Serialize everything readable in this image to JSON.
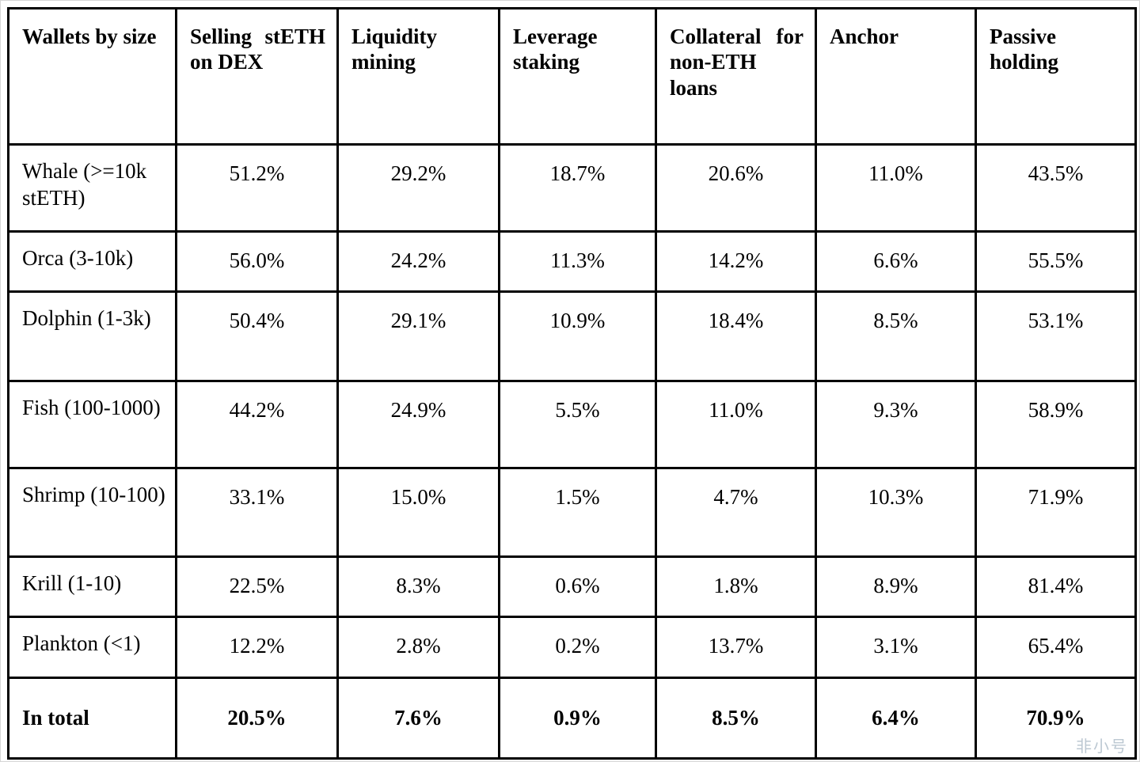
{
  "chart_data": {
    "type": "table",
    "columns": [
      "Wallets by size",
      "Selling stETH on DEX",
      "Liquidity mining",
      "Leverage staking",
      "Collateral for non-ETH loans",
      "Anchor",
      "Passive holding"
    ],
    "rows": [
      {
        "label": "Whale (>=10k stETH)",
        "values": [
          "51.2%",
          "29.2%",
          "18.7%",
          "20.6%",
          "11.0%",
          "43.5%"
        ]
      },
      {
        "label": "Orca (3-10k)",
        "values": [
          "56.0%",
          "24.2%",
          "11.3%",
          "14.2%",
          "6.6%",
          "55.5%"
        ]
      },
      {
        "label": "Dolphin (1-3k)",
        "values": [
          "50.4%",
          "29.1%",
          "10.9%",
          "18.4%",
          "8.5%",
          "53.1%"
        ]
      },
      {
        "label": "Fish (100-1000)",
        "values": [
          "44.2%",
          "24.9%",
          "5.5%",
          "11.0%",
          "9.3%",
          "58.9%"
        ]
      },
      {
        "label": "Shrimp (10-100)",
        "values": [
          "33.1%",
          "15.0%",
          "1.5%",
          "4.7%",
          "10.3%",
          "71.9%"
        ]
      },
      {
        "label": "Krill  (1-10)",
        "values": [
          "22.5%",
          "8.3%",
          "0.6%",
          "1.8%",
          "8.9%",
          "81.4%"
        ]
      },
      {
        "label": "Plankton (<1)",
        "values": [
          "12.2%",
          "2.8%",
          "0.2%",
          "13.7%",
          "3.1%",
          "65.4%"
        ]
      }
    ],
    "total_row": {
      "label": "In total",
      "values": [
        "20.5%",
        "7.6%",
        "0.9%",
        "8.5%",
        "6.4%",
        "70.9%"
      ]
    }
  },
  "watermark": {
    "text": "非小号"
  }
}
